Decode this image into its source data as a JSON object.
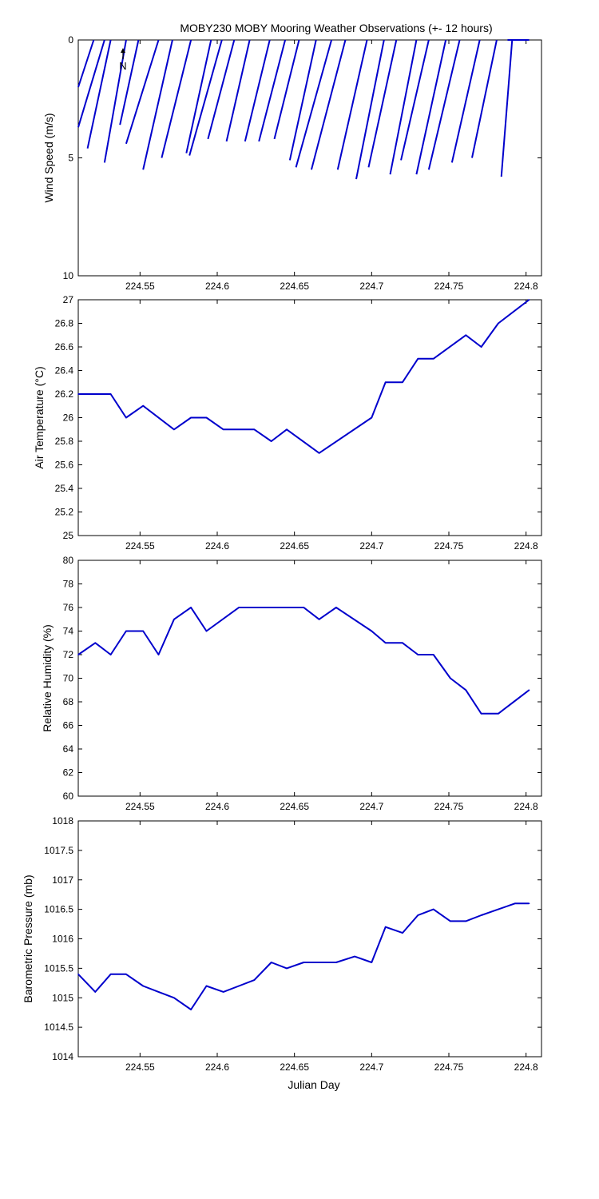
{
  "title": "MOBY230 MOBY Mooring Weather Observations (+- 12 hours)",
  "xlabel": "Julian Day",
  "north_label": "N",
  "series_color": "#0000cc",
  "chart_data": [
    {
      "type": "line",
      "panel": "wind",
      "ylabel": "Wind Speed (m/s)",
      "xlim": [
        224.51,
        224.81
      ],
      "ylim": [
        0,
        10
      ],
      "y_reversed": true,
      "xticks": [
        224.55,
        224.6,
        224.65,
        224.7,
        224.75,
        224.8
      ],
      "xtick_labels": [
        "224.55",
        "224.6",
        "224.65",
        "224.7",
        "224.75",
        "224.8"
      ],
      "yticks": [
        0,
        5,
        10
      ],
      "ytick_labels": [
        "0",
        "5",
        "10"
      ],
      "grid": false,
      "segments": [
        {
          "x0": 224.51,
          "y0": 2.0,
          "x1": 224.52,
          "y1": 0
        },
        {
          "x0": 224.51,
          "y0": 3.7,
          "x1": 224.527,
          "y1": 0
        },
        {
          "x0": 224.516,
          "y0": 4.6,
          "x1": 224.531,
          "y1": 0
        },
        {
          "x0": 224.527,
          "y0": 5.2,
          "x1": 224.541,
          "y1": 0
        },
        {
          "x0": 224.537,
          "y0": 3.6,
          "x1": 224.549,
          "y1": 0
        },
        {
          "x0": 224.541,
          "y0": 4.4,
          "x1": 224.562,
          "y1": 0
        },
        {
          "x0": 224.552,
          "y0": 5.5,
          "x1": 224.571,
          "y1": 0
        },
        {
          "x0": 224.564,
          "y0": 5.0,
          "x1": 224.583,
          "y1": 0
        },
        {
          "x0": 224.58,
          "y0": 4.8,
          "x1": 224.596,
          "y1": 0
        },
        {
          "x0": 224.582,
          "y0": 4.9,
          "x1": 224.603,
          "y1": 0
        },
        {
          "x0": 224.594,
          "y0": 4.2,
          "x1": 224.611,
          "y1": 0
        },
        {
          "x0": 224.606,
          "y0": 4.3,
          "x1": 224.621,
          "y1": 0
        },
        {
          "x0": 224.618,
          "y0": 4.3,
          "x1": 224.634,
          "y1": 0
        },
        {
          "x0": 224.627,
          "y0": 4.3,
          "x1": 224.644,
          "y1": 0
        },
        {
          "x0": 224.637,
          "y0": 4.2,
          "x1": 224.653,
          "y1": 0
        },
        {
          "x0": 224.647,
          "y0": 5.1,
          "x1": 224.664,
          "y1": 0
        },
        {
          "x0": 224.651,
          "y0": 5.4,
          "x1": 224.674,
          "y1": 0
        },
        {
          "x0": 224.661,
          "y0": 5.5,
          "x1": 224.683,
          "y1": 0
        },
        {
          "x0": 224.678,
          "y0": 5.5,
          "x1": 224.697,
          "y1": 0
        },
        {
          "x0": 224.69,
          "y0": 5.9,
          "x1": 224.708,
          "y1": 0
        },
        {
          "x0": 224.698,
          "y0": 5.4,
          "x1": 224.716,
          "y1": 0
        },
        {
          "x0": 224.712,
          "y0": 5.7,
          "x1": 224.729,
          "y1": 0
        },
        {
          "x0": 224.719,
          "y0": 5.1,
          "x1": 224.737,
          "y1": 0
        },
        {
          "x0": 224.729,
          "y0": 5.7,
          "x1": 224.748,
          "y1": 0
        },
        {
          "x0": 224.737,
          "y0": 5.5,
          "x1": 224.757,
          "y1": 0
        },
        {
          "x0": 224.752,
          "y0": 5.2,
          "x1": 224.77,
          "y1": 0
        },
        {
          "x0": 224.765,
          "y0": 5.0,
          "x1": 224.781,
          "y1": 0
        },
        {
          "x0": 224.784,
          "y0": 5.8,
          "x1": 224.791,
          "y1": 0
        },
        {
          "x0": 224.788,
          "y0": 0,
          "x1": 224.802,
          "y1": 0
        }
      ]
    },
    {
      "type": "line",
      "panel": "air-temperature",
      "ylabel": "Air Temperature (°C)",
      "xlim": [
        224.51,
        224.81
      ],
      "ylim": [
        25,
        27
      ],
      "xticks": [
        224.55,
        224.6,
        224.65,
        224.7,
        224.75,
        224.8
      ],
      "xtick_labels": [
        "224.55",
        "224.6",
        "224.65",
        "224.7",
        "224.75",
        "224.8"
      ],
      "yticks": [
        25,
        25.2,
        25.4,
        25.6,
        25.8,
        26,
        26.2,
        26.4,
        26.6,
        26.8,
        27
      ],
      "ytick_labels": [
        "25",
        "25.2",
        "25.4",
        "25.6",
        "25.8",
        "26",
        "26.2",
        "26.4",
        "26.6",
        "26.8",
        "27"
      ],
      "grid": false,
      "x": [
        224.51,
        224.531,
        224.541,
        224.552,
        224.572,
        224.583,
        224.593,
        224.604,
        224.624,
        224.635,
        224.645,
        224.666,
        224.7,
        224.709,
        224.72,
        224.73,
        224.74,
        224.761,
        224.771,
        224.782,
        224.802
      ],
      "values": [
        26.2,
        26.2,
        26.0,
        26.1,
        25.9,
        26.0,
        26.0,
        25.9,
        25.9,
        25.8,
        25.9,
        25.7,
        26.0,
        26.3,
        26.3,
        26.5,
        26.5,
        26.7,
        26.6,
        26.8,
        27.0
      ]
    },
    {
      "type": "line",
      "panel": "relative-humidity",
      "ylabel": "Relative Humidity (%)",
      "xlim": [
        224.51,
        224.81
      ],
      "ylim": [
        60,
        80
      ],
      "xticks": [
        224.55,
        224.6,
        224.65,
        224.7,
        224.75,
        224.8
      ],
      "xtick_labels": [
        "224.55",
        "224.6",
        "224.65",
        "224.7",
        "224.75",
        "224.8"
      ],
      "yticks": [
        60,
        62,
        64,
        66,
        68,
        70,
        72,
        74,
        76,
        78,
        80
      ],
      "ytick_labels": [
        "60",
        "62",
        "64",
        "66",
        "68",
        "70",
        "72",
        "74",
        "76",
        "78",
        "80"
      ],
      "grid": false,
      "x": [
        224.51,
        224.521,
        224.531,
        224.541,
        224.552,
        224.562,
        224.572,
        224.583,
        224.593,
        224.614,
        224.656,
        224.666,
        224.677,
        224.7,
        224.709,
        224.72,
        224.73,
        224.74,
        224.751,
        224.761,
        224.771,
        224.782,
        224.802
      ],
      "values": [
        72,
        73,
        72,
        74,
        74,
        72,
        75,
        76,
        74,
        76,
        76,
        75,
        76,
        74,
        73,
        73,
        72,
        72,
        70,
        69,
        67,
        67,
        69
      ]
    },
    {
      "type": "line",
      "panel": "barometric-pressure",
      "ylabel": "Barometric Pressure (mb)",
      "xlim": [
        224.51,
        224.81
      ],
      "ylim": [
        1014,
        1018
      ],
      "xticks": [
        224.55,
        224.6,
        224.65,
        224.7,
        224.75,
        224.8
      ],
      "xtick_labels": [
        "224.55",
        "224.6",
        "224.65",
        "224.7",
        "224.75",
        "224.8"
      ],
      "yticks": [
        1014,
        1014.5,
        1015,
        1015.5,
        1016,
        1016.5,
        1017,
        1017.5,
        1018
      ],
      "ytick_labels": [
        "1014",
        "1014.5",
        "1015",
        "1015.5",
        "1016",
        "1016.5",
        "1017",
        "1017.5",
        "1018"
      ],
      "grid": false,
      "x": [
        224.51,
        224.521,
        224.531,
        224.541,
        224.552,
        224.562,
        224.572,
        224.583,
        224.593,
        224.604,
        224.614,
        224.624,
        224.635,
        224.645,
        224.656,
        224.666,
        224.677,
        224.689,
        224.7,
        224.709,
        224.72,
        224.73,
        224.74,
        224.751,
        224.761,
        224.771,
        224.782,
        224.793,
        224.802
      ],
      "values": [
        1015.4,
        1015.1,
        1015.4,
        1015.4,
        1015.2,
        1015.1,
        1015.0,
        1014.8,
        1015.2,
        1015.1,
        1015.2,
        1015.3,
        1015.6,
        1015.5,
        1015.6,
        1015.6,
        1015.6,
        1015.7,
        1015.6,
        1016.2,
        1016.1,
        1016.4,
        1016.5,
        1016.3,
        1016.3,
        1016.4,
        1016.5,
        1016.6,
        1016.6
      ]
    }
  ]
}
